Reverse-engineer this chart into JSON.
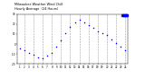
{
  "title": "Milwaukee Weather Wind Chill",
  "subtitle": "Hourly Average",
  "subtitle2": "(24 Hours)",
  "hours": [
    1,
    2,
    3,
    4,
    5,
    6,
    7,
    8,
    9,
    10,
    11,
    12,
    13,
    14,
    15,
    16,
    17,
    18,
    19,
    20,
    21,
    22,
    23,
    24
  ],
  "wind_chill": [
    -4,
    -6,
    -9,
    -11,
    -13,
    -14,
    -12,
    -9,
    -3,
    4,
    11,
    17,
    22,
    24,
    22,
    19,
    16,
    13,
    11,
    9,
    5,
    1,
    -3,
    -6
  ],
  "line_color": "#0000ff",
  "bg_color": "#ffffff",
  "plot_bg": "#ffffff",
  "ylim": [
    -20,
    30
  ],
  "ytick_vals": [
    -20,
    -10,
    0,
    10,
    20,
    30
  ],
  "ytick_labels": [
    "-20",
    "-10",
    "0",
    "10",
    "20",
    "30"
  ],
  "legend_color": "#0000ff",
  "grid_color": "#888888"
}
